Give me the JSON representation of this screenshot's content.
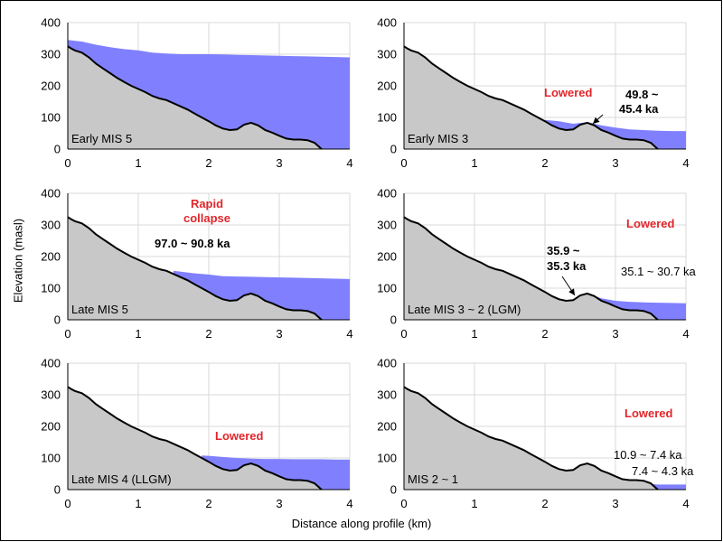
{
  "figure": {
    "ylabel": "Elevation (masl)",
    "xlabel": "Distance along profile (km)"
  },
  "colors": {
    "terrain_fill": "#c8c8c8",
    "terrain_line": "#000000",
    "glacier_fill": "#8080ff",
    "grid": "#d9d9d9",
    "highlight_text": "#e0262b"
  },
  "chart_data": [
    {
      "type": "area",
      "panel_label": "Early MIS 5",
      "xlim": [
        0,
        4
      ],
      "ylim": [
        0,
        400
      ],
      "xticks": [
        0,
        1,
        2,
        3,
        4
      ],
      "yticks": [
        0,
        100,
        200,
        300,
        400
      ],
      "grid": true,
      "series": [
        {
          "x": [
            0,
            0.2,
            0.4,
            0.6,
            0.8,
            1.0,
            1.2,
            1.4,
            1.6,
            1.8,
            2.0,
            2.2,
            2.4,
            2.6,
            2.8,
            3.0,
            3.2,
            3.4,
            3.6,
            3.8,
            4.0
          ],
          "values": [
            345,
            340,
            330,
            322,
            316,
            312,
            305,
            302,
            300,
            300,
            300,
            299,
            298,
            297,
            296,
            295,
            294,
            293,
            292,
            291,
            290
          ]
        }
      ],
      "annotations": []
    },
    {
      "type": "area",
      "panel_label": "Early MIS 3",
      "xlim": [
        0,
        4
      ],
      "ylim": [
        0,
        400
      ],
      "xticks": [
        0,
        1,
        2,
        3,
        4
      ],
      "yticks": [
        0,
        100,
        200,
        300,
        400
      ],
      "grid": true,
      "series": [
        {
          "x": [
            2.0,
            2.2,
            2.4,
            2.6,
            2.8,
            3.0,
            3.2,
            3.4,
            3.6,
            3.8,
            4.0
          ],
          "values": [
            92,
            88,
            80,
            85,
            75,
            68,
            62,
            60,
            58,
            57,
            57
          ]
        }
      ],
      "annotations": [
        {
          "text": "Lowered",
          "style": "red"
        },
        {
          "text": "49.8 ~",
          "style": "bold"
        },
        {
          "text": "45.4 ka",
          "style": "bold"
        }
      ]
    },
    {
      "type": "area",
      "panel_label": "Late MIS 5",
      "xlim": [
        0,
        4
      ],
      "ylim": [
        0,
        400
      ],
      "xticks": [
        0,
        1,
        2,
        3,
        4
      ],
      "yticks": [
        0,
        100,
        200,
        300,
        400
      ],
      "grid": true,
      "series": [
        {
          "x": [
            1.5,
            1.8,
            2.0,
            2.2,
            2.4,
            2.6,
            2.8,
            3.0,
            3.2,
            3.4,
            3.6,
            3.8,
            4.0
          ],
          "values": [
            155,
            147,
            143,
            138,
            137,
            136,
            135,
            134,
            133,
            132,
            131,
            130,
            129
          ]
        }
      ],
      "annotations": [
        {
          "text": "Rapid",
          "style": "red"
        },
        {
          "text": "collapse",
          "style": "red"
        },
        {
          "text": "97.0 ~ 90.8 ka",
          "style": "bold"
        }
      ]
    },
    {
      "type": "area",
      "panel_label": "Late MIS 3 ~ 2 (LGM)",
      "xlim": [
        0,
        4
      ],
      "ylim": [
        0,
        400
      ],
      "xticks": [
        0,
        1,
        2,
        3,
        4
      ],
      "yticks": [
        0,
        100,
        200,
        300,
        400
      ],
      "grid": true,
      "series": [
        {
          "x": [
            2.6,
            2.8,
            3.0,
            3.2,
            3.4,
            3.6,
            3.8,
            4.0
          ],
          "values": [
            82,
            68,
            60,
            57,
            55,
            54,
            53,
            52
          ]
        }
      ],
      "annotations": [
        {
          "text": "Lowered",
          "style": "red"
        },
        {
          "text": "35.9 ~",
          "style": "bold"
        },
        {
          "text": "35.3 ka",
          "style": "bold"
        },
        {
          "text": "35.1 ~ 30.7 ka",
          "style": "plain"
        }
      ]
    },
    {
      "type": "area",
      "panel_label": "Late MIS 4 (LLGM)",
      "xlim": [
        0,
        4
      ],
      "ylim": [
        0,
        400
      ],
      "xticks": [
        0,
        1,
        2,
        3,
        4
      ],
      "yticks": [
        0,
        100,
        200,
        300,
        400
      ],
      "grid": true,
      "series": [
        {
          "x": [
            1.9,
            2.0,
            2.2,
            2.4,
            2.6,
            2.8,
            3.0,
            3.2,
            3.4,
            3.6,
            3.8,
            4.0
          ],
          "values": [
            108,
            107,
            103,
            100,
            98,
            97,
            97,
            96,
            96,
            96,
            95,
            95
          ]
        }
      ],
      "annotations": [
        {
          "text": "Lowered",
          "style": "red"
        }
      ]
    },
    {
      "type": "area",
      "panel_label": "MIS 2 ~ 1",
      "xlim": [
        0,
        4
      ],
      "ylim": [
        0,
        400
      ],
      "xticks": [
        0,
        1,
        2,
        3,
        4
      ],
      "yticks": [
        0,
        100,
        200,
        300,
        400
      ],
      "grid": true,
      "series": [
        {
          "x": [
            3.5,
            3.6,
            3.8,
            4.0
          ],
          "values": [
            18,
            16,
            16,
            16
          ]
        }
      ],
      "annotations": [
        {
          "text": "Lowered",
          "style": "red"
        },
        {
          "text": "10.9 ~ 7.4 ka",
          "style": "plain"
        },
        {
          "text": "7.4 ~ 4.3 ka",
          "style": "plain"
        }
      ]
    }
  ],
  "bed_profile": {
    "x": [
      0,
      0.05,
      0.1,
      0.2,
      0.3,
      0.4,
      0.5,
      0.6,
      0.7,
      0.8,
      0.9,
      1.0,
      1.1,
      1.2,
      1.3,
      1.4,
      1.5,
      1.6,
      1.7,
      1.8,
      1.9,
      2.0,
      2.1,
      2.2,
      2.3,
      2.4,
      2.5,
      2.6,
      2.7,
      2.8,
      2.9,
      3.0,
      3.1,
      3.2,
      3.3,
      3.4,
      3.5,
      3.55,
      3.6
    ],
    "values": [
      325,
      318,
      312,
      305,
      290,
      270,
      255,
      240,
      225,
      212,
      200,
      190,
      180,
      168,
      160,
      155,
      145,
      135,
      125,
      112,
      100,
      88,
      75,
      65,
      60,
      62,
      77,
      83,
      75,
      60,
      52,
      42,
      33,
      30,
      30,
      28,
      20,
      10,
      0
    ]
  }
}
